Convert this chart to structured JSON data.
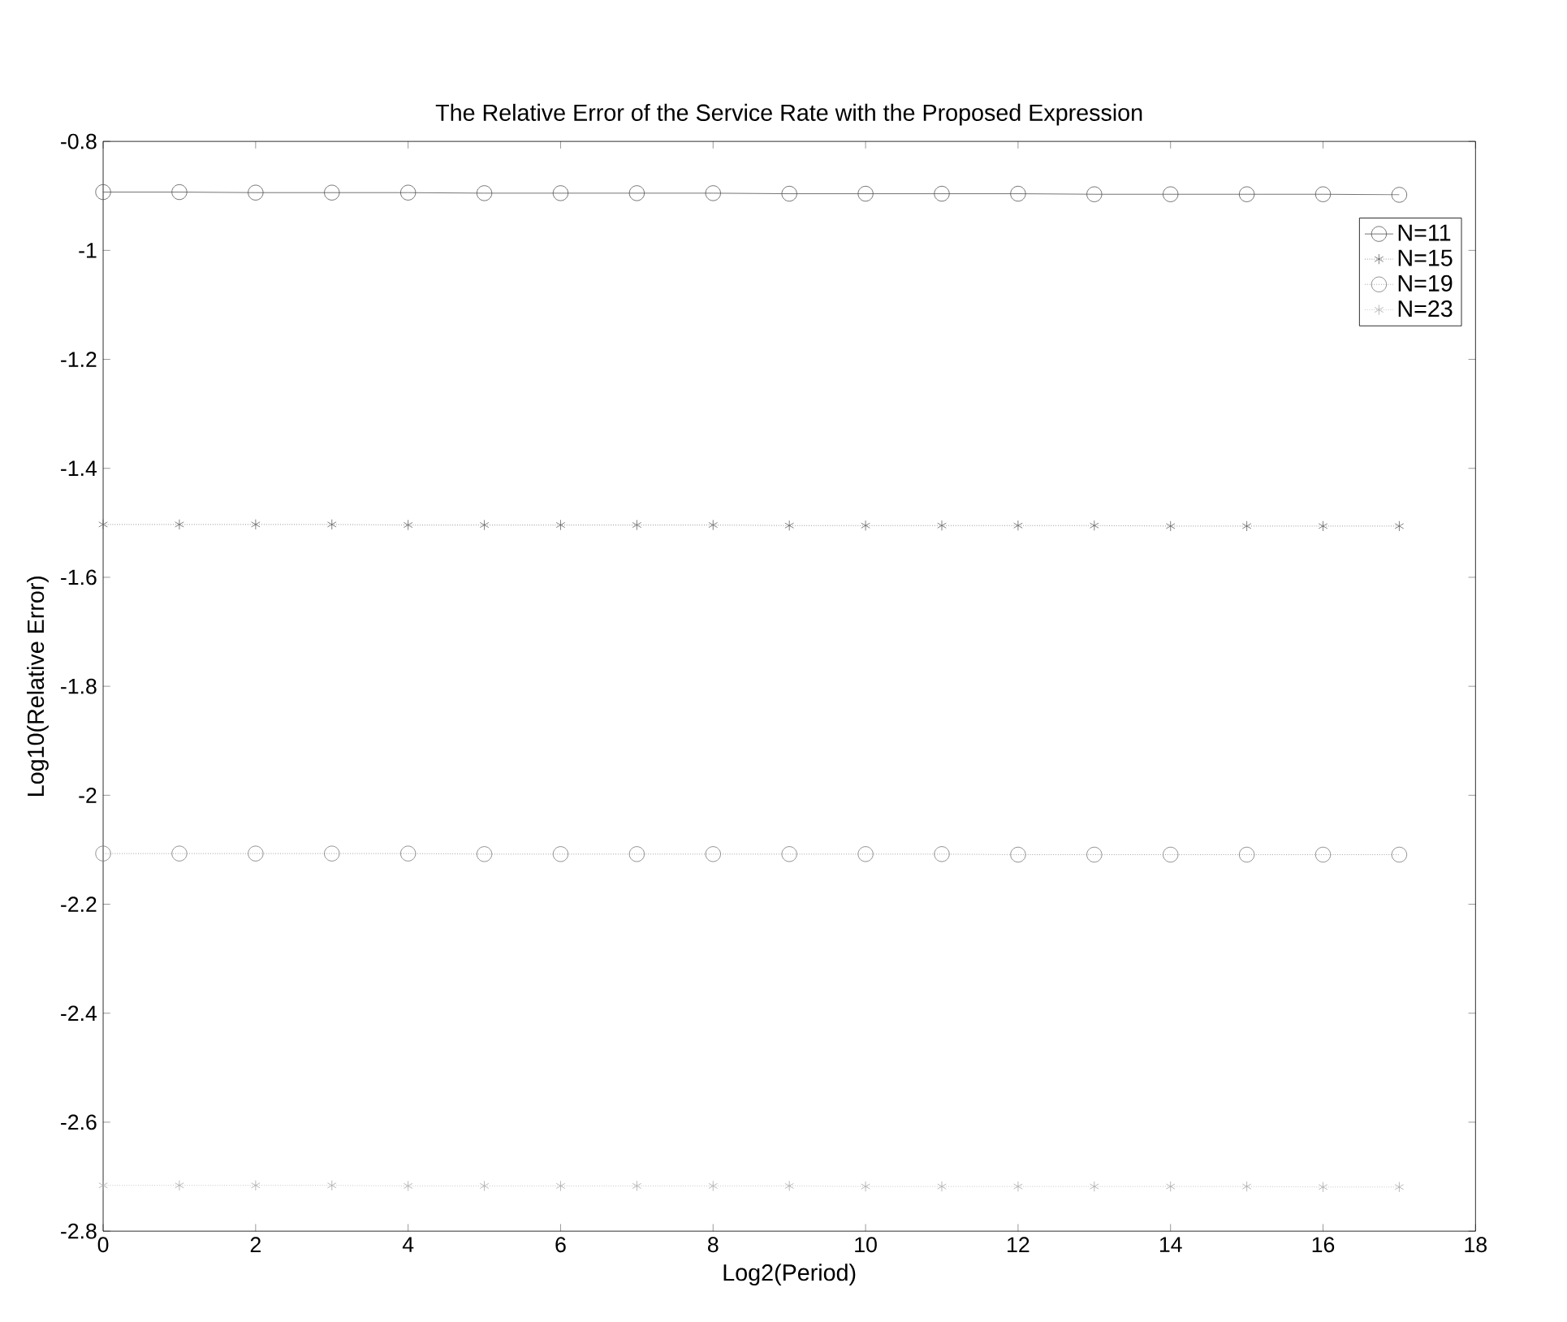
{
  "chart_data": {
    "type": "line",
    "title": "The Relative Error of the Service Rate with the Proposed Expression",
    "xlabel": "Log2(Period)",
    "ylabel": "Log10(Relative Error)",
    "x": [
      0,
      1,
      2,
      3,
      4,
      5,
      6,
      7,
      8,
      9,
      10,
      11,
      12,
      13,
      14,
      15,
      16,
      17
    ],
    "series": [
      {
        "name": "N=11",
        "color": "#555555",
        "marker": "circle",
        "line_style": "solid",
        "values": [
          -0.893,
          -0.893,
          -0.894,
          -0.894,
          -0.894,
          -0.895,
          -0.895,
          -0.895,
          -0.895,
          -0.896,
          -0.896,
          -0.896,
          -0.896,
          -0.897,
          -0.897,
          -0.897,
          -0.897,
          -0.898
        ]
      },
      {
        "name": "N=15",
        "color": "#666666",
        "marker": "cross",
        "line_style": "dotted",
        "values": [
          -1.503,
          -1.503,
          -1.503,
          -1.503,
          -1.504,
          -1.504,
          -1.504,
          -1.504,
          -1.504,
          -1.505,
          -1.505,
          -1.505,
          -1.505,
          -1.505,
          -1.506,
          -1.506,
          -1.506,
          -1.506
        ]
      },
      {
        "name": "N=19",
        "color": "#777777",
        "marker": "circle",
        "line_style": "dotted",
        "values": [
          -2.107,
          -2.107,
          -2.107,
          -2.107,
          -2.107,
          -2.108,
          -2.108,
          -2.108,
          -2.108,
          -2.108,
          -2.108,
          -2.108,
          -2.109,
          -2.109,
          -2.109,
          -2.109,
          -2.109,
          -2.109
        ]
      },
      {
        "name": "N=23",
        "color": "#aaaaaa",
        "marker": "cross",
        "line_style": "dotted",
        "values": [
          -2.716,
          -2.716,
          -2.716,
          -2.716,
          -2.717,
          -2.717,
          -2.717,
          -2.717,
          -2.717,
          -2.717,
          -2.718,
          -2.718,
          -2.718,
          -2.718,
          -2.718,
          -2.718,
          -2.719,
          -2.719
        ]
      }
    ],
    "xlim": [
      0,
      18
    ],
    "xticks": [
      0,
      2,
      4,
      6,
      8,
      10,
      12,
      14,
      16,
      18
    ],
    "ylim": [
      -2.8,
      -0.8
    ],
    "yticks": [
      -2.8,
      -2.6,
      -2.4,
      -2.2,
      -2,
      -1.8,
      -1.6,
      -1.4,
      -1.2,
      -1,
      -0.8
    ],
    "grid": false,
    "legend": "top right"
  }
}
